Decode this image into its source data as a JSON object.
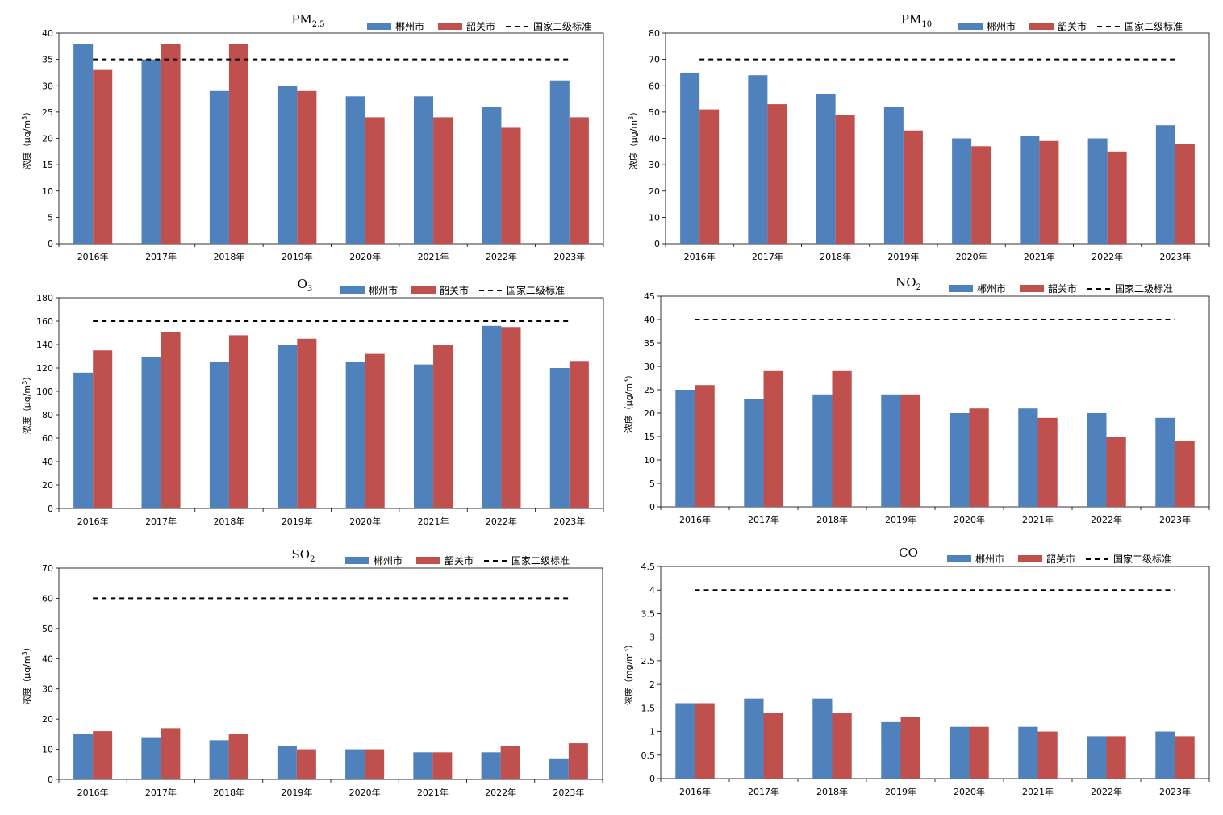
{
  "colors": {
    "city1": "#4F81BD",
    "city2": "#C0504D",
    "standard": "#000000",
    "axis": "#000000",
    "background": "#ffffff"
  },
  "legend": {
    "city1": "郴州市",
    "city2": "韶关市",
    "standard": "国家二级标准"
  },
  "chart_data": [
    {
      "type": "bar",
      "title": "PM",
      "title_sub": "2.5",
      "xlabel": "",
      "ylabel_text": "浓度（μg/m",
      "ylabel_sup": "3",
      "ylabel_close": "）",
      "categories": [
        "2016年",
        "2017年",
        "2018年",
        "2019年",
        "2020年",
        "2021年",
        "2022年",
        "2023年"
      ],
      "series": [
        {
          "name": "郴州市",
          "values": [
            38,
            35,
            29,
            30,
            28,
            28,
            26,
            31
          ]
        },
        {
          "name": "韶关市",
          "values": [
            33,
            38,
            38,
            29,
            24,
            24,
            22,
            24
          ]
        }
      ],
      "standard": 35,
      "ylim": [
        0,
        40
      ],
      "ytick_labels": [
        "0",
        "5",
        "10",
        "15",
        "20",
        "25",
        "30",
        "35",
        "40"
      ],
      "legend_position": "top-right",
      "grid": false
    },
    {
      "type": "bar",
      "title": "PM",
      "title_sub": "10",
      "xlabel": "",
      "ylabel_text": "浓度（μg/m",
      "ylabel_sup": "3",
      "ylabel_close": "）",
      "categories": [
        "2016年",
        "2017年",
        "2018年",
        "2019年",
        "2020年",
        "2021年",
        "2022年",
        "2023年"
      ],
      "series": [
        {
          "name": "郴州市",
          "values": [
            65,
            64,
            57,
            52,
            40,
            41,
            40,
            45
          ]
        },
        {
          "name": "韶关市",
          "values": [
            51,
            53,
            49,
            43,
            37,
            39,
            35,
            38
          ]
        }
      ],
      "standard": 70,
      "ylim": [
        0,
        80
      ],
      "ytick_labels": [
        "0",
        "10",
        "20",
        "30",
        "40",
        "50",
        "60",
        "70",
        "80"
      ],
      "legend_position": "top-right",
      "grid": false
    },
    {
      "type": "bar",
      "title": "O",
      "title_sub": "3",
      "xlabel": "",
      "ylabel_text": "浓度（μg/m",
      "ylabel_sup": "3",
      "ylabel_close": "）",
      "categories": [
        "2016年",
        "2017年",
        "2018年",
        "2019年",
        "2020年",
        "2021年",
        "2022年",
        "2023年"
      ],
      "series": [
        {
          "name": "郴州市",
          "values": [
            116,
            129,
            125,
            140,
            125,
            123,
            156,
            120
          ]
        },
        {
          "name": "韶关市",
          "values": [
            135,
            151,
            148,
            145,
            132,
            140,
            155,
            126
          ]
        }
      ],
      "standard": 160,
      "ylim": [
        0,
        180
      ],
      "ytick_labels": [
        "0",
        "20",
        "40",
        "60",
        "80",
        "100",
        "120",
        "140",
        "160",
        "180"
      ],
      "legend_position": "top-right",
      "grid": false
    },
    {
      "type": "bar",
      "title": "NO",
      "title_sub": "2",
      "xlabel": "",
      "ylabel_text": "浓度（μg/m",
      "ylabel_sup": "3",
      "ylabel_close": "）",
      "categories": [
        "2016年",
        "2017年",
        "2018年",
        "2019年",
        "2020年",
        "2021年",
        "2022年",
        "2023年"
      ],
      "series": [
        {
          "name": "郴州市",
          "values": [
            25,
            23,
            24,
            24,
            20,
            21,
            20,
            19
          ]
        },
        {
          "name": "韶关市",
          "values": [
            26,
            29,
            29,
            24,
            21,
            19,
            15,
            14
          ]
        }
      ],
      "standard": 40,
      "ylim": [
        0,
        45
      ],
      "ytick_labels": [
        "0",
        "5",
        "10",
        "15",
        "20",
        "25",
        "30",
        "35",
        "40",
        "45"
      ],
      "legend_position": "top-right",
      "grid": false
    },
    {
      "type": "bar",
      "title": "SO",
      "title_sub": "2",
      "xlabel": "",
      "ylabel_text": "浓度（μg/m",
      "ylabel_sup": "3",
      "ylabel_close": "）",
      "categories": [
        "2016年",
        "2017年",
        "2018年",
        "2019年",
        "2020年",
        "2021年",
        "2022年",
        "2023年"
      ],
      "series": [
        {
          "name": "郴州市",
          "values": [
            15,
            14,
            13,
            11,
            10,
            9,
            9,
            7
          ]
        },
        {
          "name": "韶关市",
          "values": [
            16,
            17,
            15,
            10,
            10,
            9,
            11,
            12
          ]
        }
      ],
      "standard": 60,
      "ylim": [
        0,
        70
      ],
      "ytick_labels": [
        "0",
        "10",
        "20",
        "30",
        "40",
        "50",
        "60",
        "70"
      ],
      "legend_position": "top-right",
      "grid": false
    },
    {
      "type": "bar",
      "title": "CO",
      "title_sub": "",
      "xlabel": "",
      "ylabel_text": "浓度（mg/m",
      "ylabel_sup": "3",
      "ylabel_close": "）",
      "categories": [
        "2016年",
        "2017年",
        "2018年",
        "2019年",
        "2020年",
        "2021年",
        "2022年",
        "2023年"
      ],
      "series": [
        {
          "name": "郴州市",
          "values": [
            1.6,
            1.7,
            1.7,
            1.2,
            1.1,
            1.1,
            0.9,
            1.0
          ]
        },
        {
          "name": "韶关市",
          "values": [
            1.6,
            1.4,
            1.4,
            1.3,
            1.1,
            1.0,
            0.9,
            0.9
          ]
        }
      ],
      "standard": 4,
      "ylim": [
        0,
        4.5
      ],
      "ytick_labels": [
        "0",
        "0.5",
        "1",
        "1.5",
        "2",
        "2.5",
        "3",
        "3.5",
        "4",
        "4.5"
      ],
      "legend_position": "top-right",
      "grid": false
    }
  ]
}
